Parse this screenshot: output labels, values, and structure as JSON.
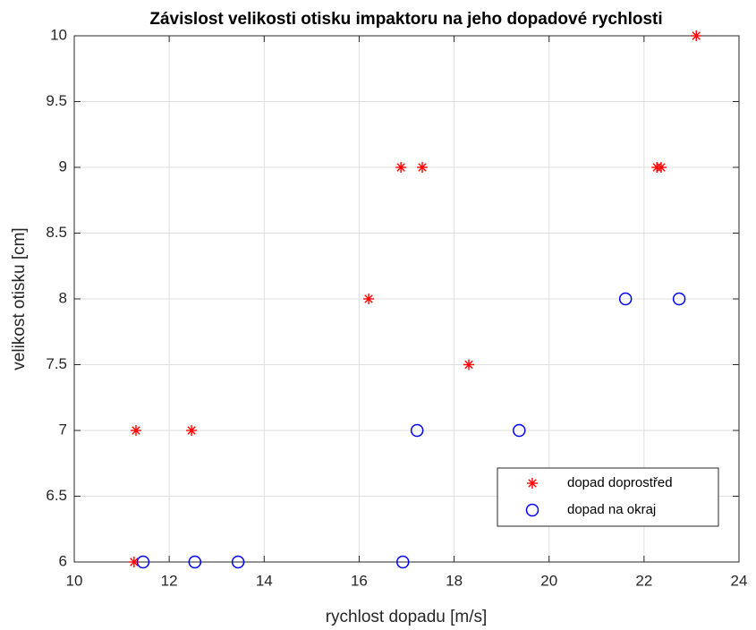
{
  "chart_data": {
    "type": "scatter",
    "title": "Závislost velikosti otisku impaktoru na jeho dopadové rychlosti",
    "xlabel": "rychlost dopadu [m/s]",
    "ylabel": "velikost otisku [cm]",
    "xlim": [
      10,
      24
    ],
    "xticks": [
      10,
      12,
      14,
      16,
      18,
      20,
      22,
      24
    ],
    "ylim": [
      6,
      10
    ],
    "yticks": [
      6,
      6.5,
      7,
      7.5,
      8,
      8.5,
      9,
      9.5,
      10
    ],
    "grid": true,
    "legend": "southeast",
    "series": [
      {
        "name": "dopad doprostřed",
        "color": "#ff0000",
        "marker": "star",
        "x": [
          11.3,
          12.47,
          11.26,
          16.2,
          16.88,
          17.33,
          18.31,
          22.27,
          22.36,
          23.1
        ],
        "values": [
          7,
          7,
          6,
          8,
          9,
          9,
          7.5,
          9,
          9,
          10
        ]
      },
      {
        "name": "dopad na okraj",
        "color": "#0000ff",
        "marker": "circle",
        "x": [
          11.45,
          12.54,
          13.45,
          16.92,
          17.22,
          19.37,
          21.61,
          22.74
        ],
        "values": [
          6,
          6,
          6,
          6,
          7,
          7,
          8,
          8
        ]
      }
    ]
  }
}
